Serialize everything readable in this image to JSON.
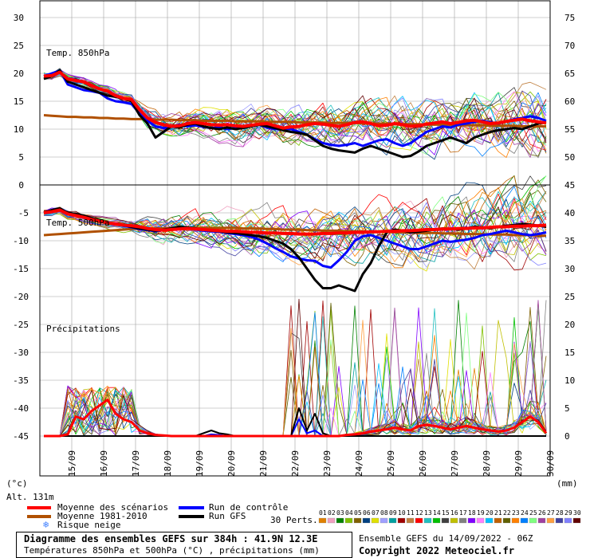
{
  "chart_data": {
    "type": "line",
    "dates": [
      "15/09",
      "16/09",
      "17/09",
      "18/09",
      "19/09",
      "20/09",
      "21/09",
      "22/09",
      "23/09",
      "24/09",
      "25/09",
      "26/09",
      "27/09",
      "28/09",
      "29/09",
      "30/09"
    ],
    "x_step_hours": 6,
    "panels": {
      "t850": {
        "title": "Temp. 850hPa",
        "ylim": [
          0,
          30
        ],
        "left_ticks": [
          "30",
          "25",
          "20",
          "15",
          "10",
          "5",
          "0"
        ],
        "right_ticks": [
          "75",
          "70",
          "65",
          "60",
          "55",
          "50",
          ""
        ],
        "mean": [
          19.5,
          19.6,
          20.2,
          19.0,
          18.7,
          18.5,
          17.8,
          17.2,
          16.8,
          16.0,
          15.5,
          15.3,
          13.5,
          12.0,
          11.2,
          10.8,
          10.5,
          10.6,
          11.0,
          11.2,
          11.0,
          10.8,
          10.7,
          10.8,
          10.6,
          10.5,
          10.7,
          10.9,
          11.0,
          10.6,
          10.2,
          10.4,
          10.5,
          10.8,
          11.0,
          10.9,
          10.7,
          10.5,
          10.8,
          11.2,
          11.3,
          11.0,
          10.6,
          10.7,
          11.0,
          10.8,
          10.5,
          10.6,
          10.9,
          11.1,
          11.3,
          11.0,
          11.2,
          11.5,
          11.6,
          11.3,
          11.0,
          11.1,
          11.4,
          11.6,
          11.8,
          11.5,
          11.3,
          11.1
        ],
        "gfs": [
          19.0,
          19.5,
          20.5,
          18.5,
          18.0,
          17.5,
          17.0,
          16.5,
          16.0,
          15.8,
          15.5,
          15.0,
          12.5,
          11.0,
          8.5,
          9.5,
          10.5,
          10.3,
          10.8,
          11.0,
          10.5,
          10.2,
          10.0,
          10.3,
          10.0,
          10.2,
          10.5,
          10.8,
          10.5,
          10.2,
          9.8,
          9.5,
          9.3,
          9.0,
          8.0,
          7.0,
          6.5,
          6.2,
          6.0,
          5.8,
          6.5,
          7.0,
          6.5,
          6.0,
          5.5,
          5.0,
          5.2,
          6.0,
          7.0,
          7.5,
          8.0,
          8.5,
          8.0,
          7.5,
          8.5,
          9.0,
          9.5,
          9.8,
          10.0,
          10.2,
          10.0,
          10.5,
          11.0,
          11.2
        ],
        "control": [
          19.5,
          20.0,
          20.5,
          18.0,
          17.5,
          17.0,
          16.8,
          16.5,
          15.5,
          15.0,
          14.8,
          14.5,
          12.8,
          11.5,
          10.5,
          10.2,
          10.5,
          10.8,
          10.5,
          10.7,
          10.4,
          10.2,
          10.3,
          10.0,
          10.2,
          10.4,
          10.6,
          10.8,
          10.3,
          10.0,
          10.1,
          10.0,
          9.5,
          9.0,
          8.2,
          7.5,
          7.2,
          7.0,
          7.2,
          7.5,
          7.0,
          7.5,
          8.0,
          8.2,
          7.5,
          7.0,
          7.5,
          8.5,
          9.5,
          10.0,
          10.5,
          10.3,
          10.8,
          11.0,
          11.3,
          11.5,
          11.2,
          11.0,
          11.4,
          11.8,
          12.0,
          12.3,
          12.0,
          11.5
        ],
        "clim": [
          12.5,
          12.4,
          12.3,
          12.2,
          12.2,
          12.1,
          12.1,
          12.0,
          12.0,
          11.9,
          11.9,
          11.8,
          11.8,
          11.8,
          11.7,
          11.7,
          11.7,
          11.6,
          11.6,
          11.6,
          11.5,
          11.5,
          11.5,
          11.5,
          11.4,
          11.4,
          11.4,
          11.4,
          11.3,
          11.3,
          11.3,
          11.3,
          11.2,
          11.2,
          11.2,
          11.2,
          11.1,
          11.1,
          11.1,
          11.1,
          11.0,
          11.0,
          11.0,
          11.0,
          10.9,
          10.9,
          10.9,
          10.9,
          10.8,
          10.8,
          10.8,
          10.8,
          10.7,
          10.7,
          10.7,
          10.7,
          10.6,
          10.6,
          10.6,
          10.6,
          10.5,
          10.5,
          10.5,
          10.5
        ]
      },
      "t500": {
        "title": "Temp. 500hPa",
        "ylim": [
          -45,
          -5
        ],
        "left_ticks": [
          "-5",
          "-10",
          "-15",
          "-20",
          "-25",
          "-30",
          "-35",
          "-40",
          "-45"
        ],
        "mean": [
          -10.0,
          -9.8,
          -9.5,
          -10.2,
          -10.5,
          -10.8,
          -11.2,
          -11.5,
          -11.8,
          -12.0,
          -12.2,
          -12.3,
          -12.5,
          -12.8,
          -13.0,
          -13.1,
          -13.0,
          -12.9,
          -12.8,
          -12.9,
          -13.0,
          -13.1,
          -13.2,
          -13.3,
          -13.3,
          -13.4,
          -13.5,
          -13.5,
          -13.6,
          -13.6,
          -13.7,
          -13.7,
          -13.8,
          -13.8,
          -13.8,
          -13.7,
          -13.7,
          -13.6,
          -13.6,
          -13.5,
          -13.5,
          -13.4,
          -13.4,
          -13.3,
          -13.3,
          -13.2,
          -13.2,
          -13.1,
          -13.0,
          -13.0,
          -12.9,
          -12.9,
          -12.8,
          -12.8,
          -12.7,
          -12.7,
          -12.6,
          -12.5,
          -12.5,
          -12.4,
          -12.4,
          -12.3,
          -12.3,
          -12.2
        ],
        "gfs": [
          -10.0,
          -9.5,
          -9.2,
          -10.0,
          -10.2,
          -10.5,
          -11.0,
          -11.3,
          -11.8,
          -12.0,
          -12.2,
          -12.5,
          -12.8,
          -13.0,
          -13.2,
          -13.0,
          -12.8,
          -12.5,
          -12.6,
          -12.8,
          -13.0,
          -13.2,
          -13.3,
          -13.5,
          -13.6,
          -13.8,
          -14.0,
          -14.2,
          -14.5,
          -15.0,
          -15.5,
          -16.5,
          -18.0,
          -20.0,
          -22.0,
          -23.5,
          -23.5,
          -23.0,
          -23.5,
          -24.0,
          -21.0,
          -19.0,
          -16.0,
          -13.5,
          -13.0,
          -13.2,
          -13.5,
          -13.4,
          -13.2,
          -13.0,
          -12.8,
          -12.9,
          -13.0,
          -12.8,
          -12.5,
          -12.6,
          -12.8,
          -12.5,
          -12.3,
          -12.2,
          -12.0,
          -12.1,
          -12.3,
          -12.5
        ],
        "control": [
          -10.0,
          -9.6,
          -9.3,
          -10.1,
          -10.4,
          -10.8,
          -11.2,
          -11.5,
          -11.9,
          -12.1,
          -12.3,
          -12.6,
          -12.9,
          -13.1,
          -13.3,
          -13.1,
          -12.9,
          -12.7,
          -12.8,
          -13.0,
          -13.2,
          -13.3,
          -13.4,
          -13.6,
          -13.8,
          -14.0,
          -14.3,
          -14.8,
          -15.5,
          -16.3,
          -17.0,
          -17.8,
          -18.2,
          -18.5,
          -18.6,
          -19.5,
          -19.8,
          -18.5,
          -17.0,
          -15.0,
          -14.2,
          -14.0,
          -14.5,
          -15.0,
          -15.5,
          -16.0,
          -16.5,
          -16.5,
          -16.0,
          -15.5,
          -15.0,
          -15.2,
          -15.0,
          -14.8,
          -14.5,
          -14.0,
          -13.8,
          -13.5,
          -13.2,
          -13.5,
          -13.8,
          -14.0,
          -13.8,
          -13.5
        ],
        "clim": [
          -14.0,
          -13.9,
          -13.8,
          -13.7,
          -13.6,
          -13.5,
          -13.4,
          -13.3,
          -13.2,
          -13.1,
          -13.0,
          -12.9,
          -12.9,
          -12.8,
          -12.8,
          -12.8,
          -12.7,
          -12.7,
          -12.7,
          -12.7,
          -12.7,
          -12.7,
          -12.7,
          -12.7,
          -12.7,
          -12.8,
          -12.8,
          -12.8,
          -12.9,
          -12.9,
          -13.0,
          -13.0,
          -13.0,
          -13.1,
          -13.1,
          -13.2,
          -13.2,
          -13.2,
          -13.3,
          -13.3,
          -13.3,
          -13.4,
          -13.4,
          -13.4,
          -13.5,
          -13.5,
          -13.5,
          -13.6,
          -13.6,
          -13.6,
          -13.7,
          -13.7,
          -13.7,
          -13.8,
          -13.8,
          -13.8,
          -13.9,
          -13.9,
          -13.9,
          -14.0,
          -14.0,
          -14.0,
          -14.1,
          -14.1
        ]
      },
      "precip": {
        "title": "Précipitations",
        "ylim": [
          0,
          45
        ],
        "right_ticks": [
          "45",
          "40",
          "35",
          "30",
          "25",
          "20",
          "15",
          "10",
          "5",
          "0"
        ],
        "mean": [
          0,
          0,
          0,
          0.3,
          3.5,
          3.0,
          4.5,
          5.5,
          6.5,
          4.0,
          3.0,
          2.5,
          1.0,
          0.5,
          0.2,
          0.1,
          0,
          0,
          0,
          0,
          0,
          0,
          0,
          0,
          0,
          0,
          0,
          0,
          0,
          0,
          0,
          0,
          0,
          0,
          0,
          0,
          0,
          0,
          0.2,
          0.3,
          0.5,
          0.8,
          1.0,
          1.2,
          1.5,
          1.2,
          1.0,
          1.8,
          2.0,
          1.8,
          1.5,
          1.2,
          1.5,
          1.8,
          1.5,
          1.2,
          1.0,
          0.8,
          1.0,
          1.5,
          2.5,
          3.5,
          2.5,
          0.5
        ],
        "gfs": [
          0,
          0,
          0,
          0,
          0,
          0,
          0,
          0,
          0,
          0,
          0,
          0,
          0,
          0,
          0,
          0,
          0,
          0,
          0,
          0,
          0.5,
          1.0,
          0.5,
          0.3,
          0,
          0,
          0,
          0,
          0,
          0,
          0,
          0,
          5.0,
          1.0,
          4.0,
          0.5,
          0,
          0,
          0,
          0,
          0,
          0,
          0,
          0,
          0,
          0,
          0,
          0,
          0,
          0,
          0,
          0,
          0,
          0,
          0,
          0,
          0,
          0,
          0,
          0,
          0,
          0,
          0,
          0
        ],
        "control": [
          0,
          0,
          0,
          0,
          0,
          0,
          0,
          0,
          0,
          0,
          0,
          0,
          0,
          0,
          0,
          0,
          0,
          0,
          0,
          0,
          0,
          0.3,
          0.2,
          0,
          0,
          0,
          0,
          0,
          0,
          0,
          0,
          0,
          3.0,
          0.5,
          1.0,
          0,
          0,
          0,
          0,
          0,
          0,
          0,
          0,
          0,
          0,
          0,
          0,
          0,
          0,
          0,
          0,
          0,
          0,
          0,
          0,
          0,
          0,
          0,
          0,
          0,
          0,
          0,
          0,
          0
        ]
      }
    },
    "unit_left": "(°c)",
    "unit_right": "(mm)",
    "altitude_label": "Alt. 131m",
    "legend": {
      "mean": "Moyenne des scénarios",
      "clim": "Moyenne 1981-2010",
      "snow": "Risque neige",
      "control": "Run de contrôle",
      "gfs": "Run GFS",
      "perts": "30 Perts.",
      "members": [
        "01",
        "02",
        "03",
        "04",
        "05",
        "06",
        "07",
        "08",
        "09",
        "10",
        "11",
        "12",
        "13",
        "14",
        "15",
        "16",
        "17",
        "18",
        "19",
        "20",
        "21",
        "22",
        "23",
        "24",
        "25",
        "26",
        "27",
        "28",
        "29",
        "30"
      ]
    },
    "member_colors": [
      "#e08000",
      "#f0a0c0",
      "#008000",
      "#80c000",
      "#806000",
      "#004080",
      "#e0e000",
      "#a0a0ff",
      "#00a0a0",
      "#a00000",
      "#c08040",
      "#ff0000",
      "#20c0c0",
      "#00c000",
      "#404040",
      "#c0c000",
      "#808080",
      "#8000ff",
      "#ff80ff",
      "#00c0ff",
      "#c06000",
      "#606000",
      "#ff8000",
      "#0080ff",
      "#80ff80",
      "#a040a0",
      "#ffa040",
      "#4040a0",
      "#8080ff",
      "#600000"
    ],
    "colors": {
      "mean": "#ff0000",
      "clim": "#b05000",
      "control": "#0000ff",
      "gfs": "#000000",
      "grid": "#a0a0a0"
    }
  },
  "footer": {
    "title": "Diagramme des ensembles GEFS sur 384h : 41.9N 12.3E",
    "subtitle": "Températures 850hPa et 500hPa (°C) , précipitations (mm)",
    "run": "Ensemble GEFS du 14/09/2022 - 06Z",
    "copyright": "Copyright 2022 Meteociel.fr"
  }
}
